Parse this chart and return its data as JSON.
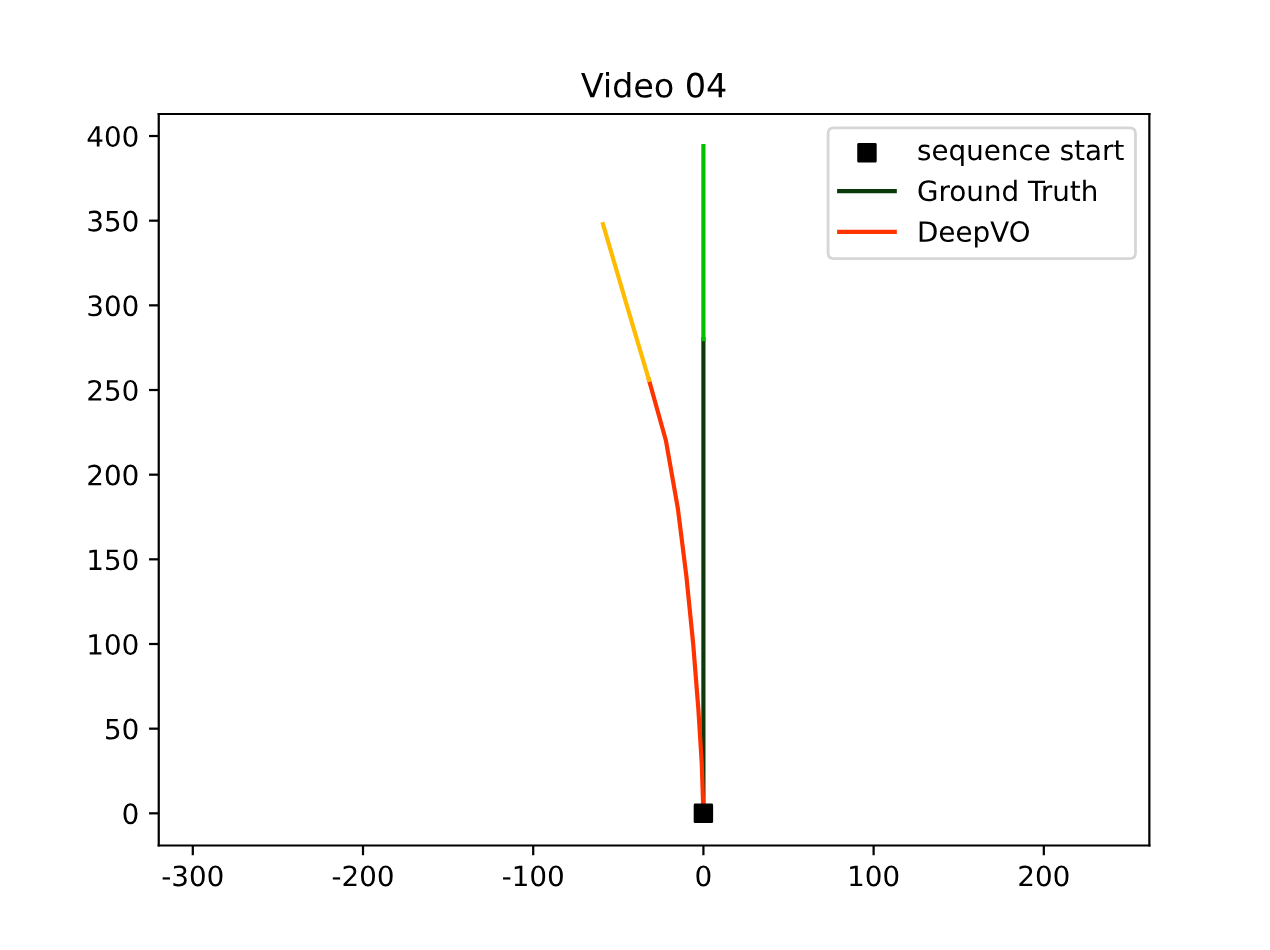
{
  "chart_data": {
    "type": "line",
    "title": "Video 04",
    "series": [
      {
        "name": "sequence start",
        "type": "scatter",
        "marker": "square",
        "color": "#000000",
        "x": [
          0
        ],
        "values": [
          0
        ]
      },
      {
        "name": "Ground Truth",
        "color": "#0a3a0a",
        "x": [
          0,
          0
        ],
        "values": [
          0,
          280
        ]
      },
      {
        "color": "#00c000",
        "x": [
          0,
          0
        ],
        "values": [
          280,
          394
        ]
      },
      {
        "name": "DeepVO",
        "color": "#ff3300",
        "x": [
          0,
          -1,
          -3,
          -6,
          -10,
          -15,
          -22,
          -32
        ],
        "values": [
          0,
          30,
          62,
          100,
          140,
          180,
          220,
          256
        ]
      },
      {
        "color": "#ffbb00",
        "x": [
          -32,
          -45,
          -59
        ],
        "values": [
          256,
          300,
          348
        ]
      }
    ],
    "xlim": [
      -320,
      262
    ],
    "ylim": [
      -19,
      413
    ],
    "xticks": [
      -300,
      -200,
      -100,
      0,
      100,
      200
    ],
    "yticks": [
      0,
      50,
      100,
      150,
      200,
      250,
      300,
      350,
      400
    ],
    "grid": false,
    "legend": "top right"
  }
}
